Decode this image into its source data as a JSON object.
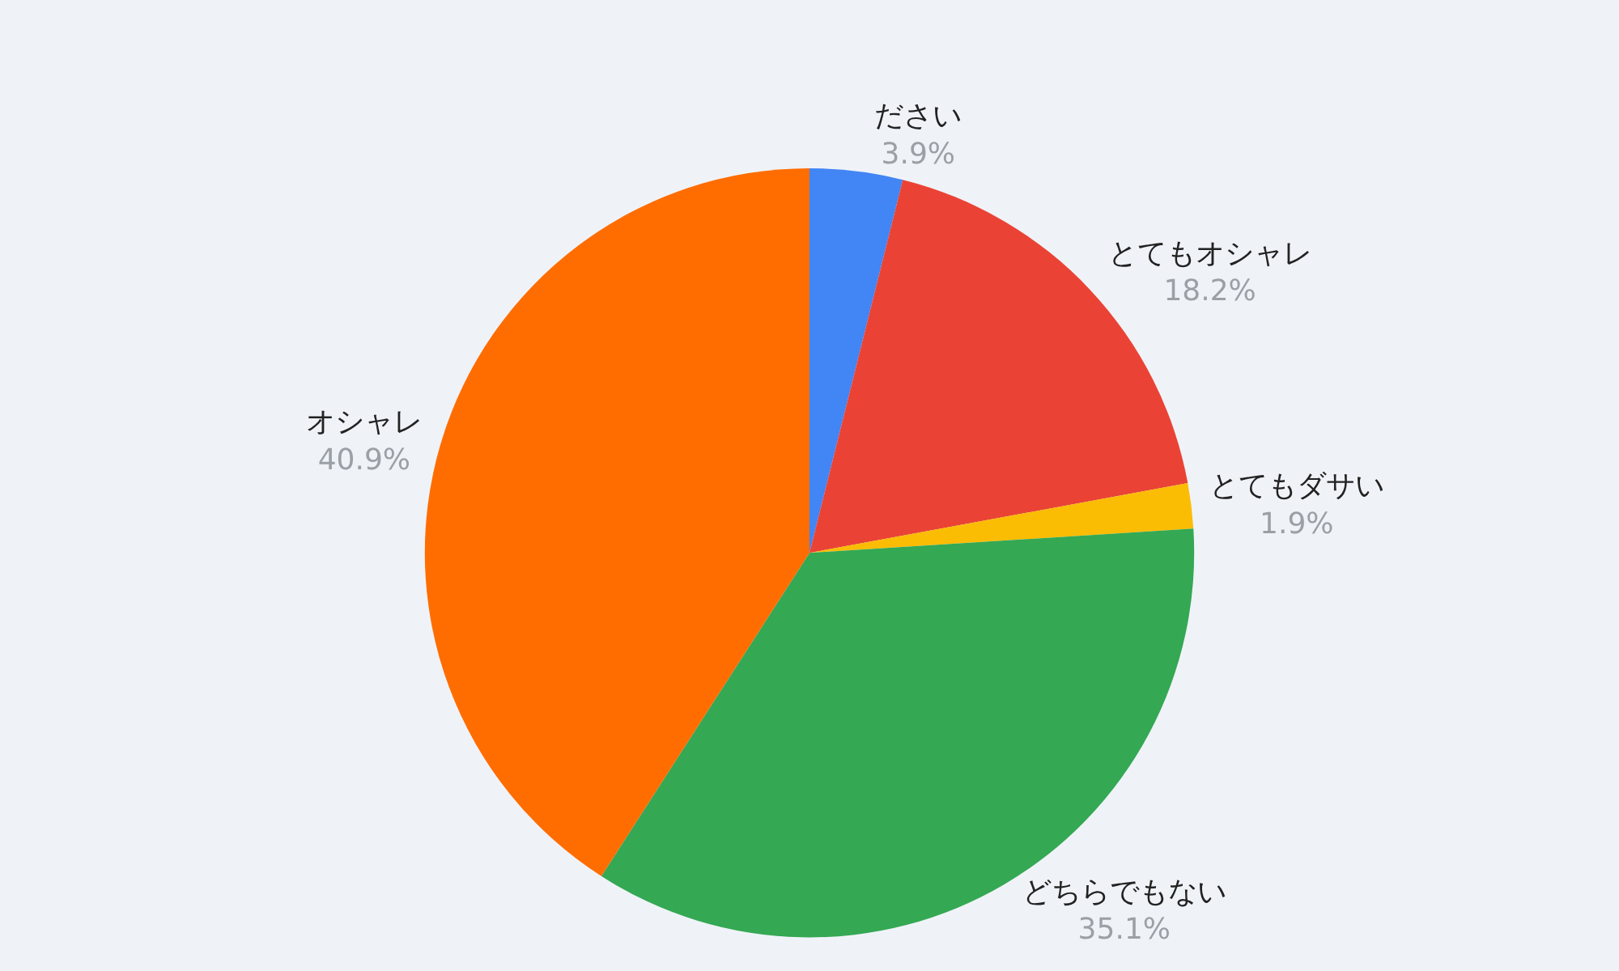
{
  "chart_data": {
    "type": "pie",
    "categories": [
      "ださい",
      "とてもオシャレ",
      "とてもダサい",
      "どちらでもない",
      "オシャレ"
    ],
    "values": [
      3.9,
      18.2,
      1.9,
      35.1,
      40.9
    ],
    "value_labels": [
      "3.9%",
      "18.2%",
      "1.9%",
      "35.1%",
      "40.9%"
    ],
    "colors": [
      "#4285f4",
      "#ea4335",
      "#fbbc04",
      "#34a853",
      "#ff6d01"
    ],
    "legend": false
  }
}
